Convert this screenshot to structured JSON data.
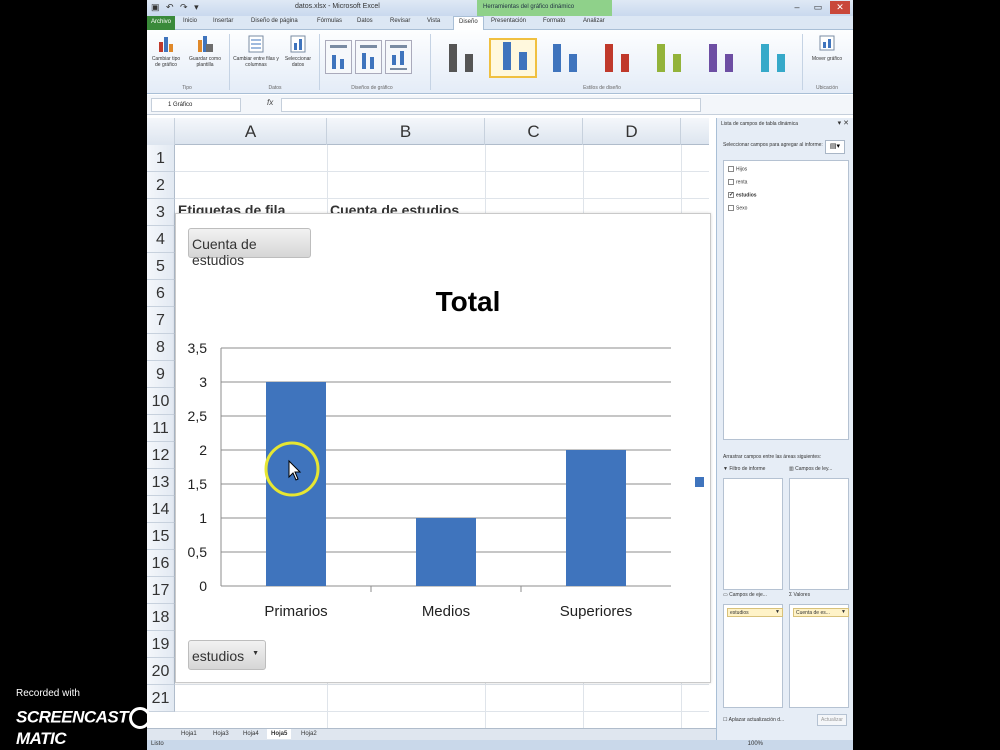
{
  "window": {
    "title": "datos.xlsx - Microsoft Excel",
    "contextual_tab_group": "Herramientas del gráfico dinámico"
  },
  "ribbon_tabs": [
    "Archivo",
    "Inicio",
    "Insertar",
    "Diseño de página",
    "Fórmulas",
    "Datos",
    "Revisar",
    "Vista",
    "Diseño",
    "Presentación",
    "Formato",
    "Analizar"
  ],
  "active_tab_index": 8,
  "ribbon": {
    "buttons": {
      "change_type": "Cambiar tipo de gráfico",
      "save_template": "Guardar como plantilla",
      "switch_rowcol": "Cambiar entre filas y columnas",
      "select_data": "Seleccionar datos",
      "move_chart": "Mover gráfico"
    },
    "groups": {
      "tipo": "Tipo",
      "datos": "Datos",
      "disenos": "Diseños de gráfico",
      "estilos": "Estilos de diseño",
      "ubicacion": "Ubicación"
    },
    "style_colors": [
      "#555555",
      "#3f74bd",
      "#3f74bd",
      "#c0392b",
      "#93b33a",
      "#6d4ea3",
      "#36a9c9",
      "#e0892a"
    ]
  },
  "formula_bar": {
    "name_box": "1 Gráfico",
    "fx": "fx"
  },
  "grid": {
    "columns": [
      "A",
      "B",
      "C",
      "D"
    ],
    "rows": [
      "1",
      "2",
      "3",
      "4",
      "5",
      "6",
      "7",
      "8",
      "9",
      "10",
      "11",
      "12",
      "13",
      "14",
      "15",
      "16",
      "17",
      "18",
      "19",
      "20",
      "21"
    ],
    "cells": {
      "A3": "Etiquetas de fila",
      "B3": "Cuenta de estudios"
    }
  },
  "chart": {
    "field_button": "Cuenta de estudios",
    "axis_field_button": "estudios",
    "legend_marker_color": "#3f74bd"
  },
  "chart_data": {
    "type": "bar",
    "title": "Total",
    "categories": [
      "Primarios",
      "Medios",
      "Superiores"
    ],
    "values": [
      3,
      1,
      2
    ],
    "ylim": [
      0,
      3.5
    ],
    "yticks": [
      "0",
      "0,5",
      "1",
      "1,5",
      "2",
      "2,5",
      "3",
      "3,5"
    ],
    "bar_color": "#3f74bd",
    "grid": true
  },
  "sheet_tabs": [
    "Hoja1",
    "Hoja3",
    "Hoja4",
    "Hoja5",
    "Hoja2"
  ],
  "active_sheet_index": 3,
  "status": {
    "left": "Listo",
    "zoom": "100%"
  },
  "pivot_pane": {
    "title": "Lista de campos de tabla dinámica",
    "choose_label": "Seleccionar campos para agregar al informe:",
    "fields": [
      {
        "name": "Hijos",
        "checked": false
      },
      {
        "name": "renta",
        "checked": false
      },
      {
        "name": "estudios",
        "checked": true
      },
      {
        "name": "Sexo",
        "checked": false
      }
    ],
    "drag_label": "Arrastrar campos entre las áreas siguientes:",
    "areas": {
      "filter": "Filtro de informe",
      "legend": "Campos de ley...",
      "axis": "Campos de eje...",
      "values": "Valores"
    },
    "axis_chip": "estudios",
    "values_chip": "Cuenta de es...",
    "defer_label": "Aplazar actualización d...",
    "update_button": "Actualizar"
  },
  "watermark": {
    "small": "Recorded with",
    "big_left": "SCREENCAST",
    "big_right": "MATIC"
  }
}
